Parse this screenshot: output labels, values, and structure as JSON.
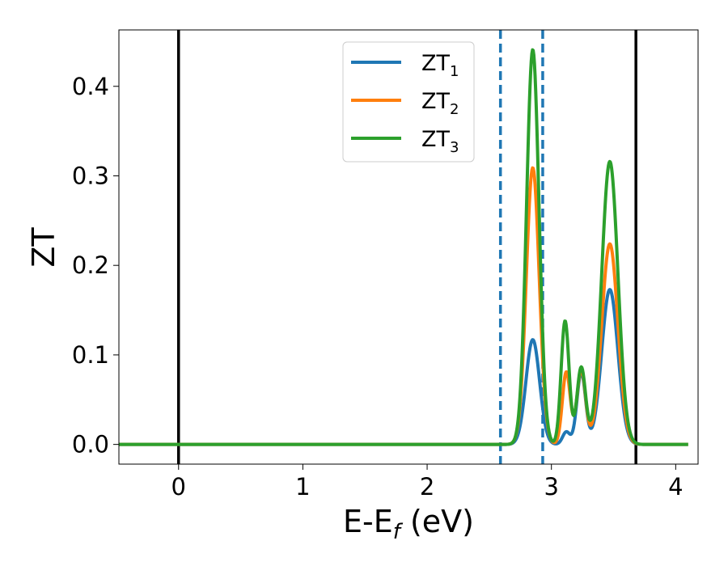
{
  "chart_data": {
    "type": "line",
    "xlabel_main": "E-E",
    "xlabel_sub": "f",
    "xlabel_unit": " (eV)",
    "ylabel": "ZT",
    "xlim": [
      -0.48,
      4.18
    ],
    "ylim": [
      -0.022,
      0.463
    ],
    "xticks": [
      0,
      1,
      2,
      3,
      4
    ],
    "xtick_labels": [
      "0",
      "1",
      "2",
      "3",
      "4"
    ],
    "yticks": [
      0.0,
      0.1,
      0.2,
      0.3,
      0.4
    ],
    "ytick_labels": [
      "0.0",
      "0.1",
      "0.2",
      "0.3",
      "0.4"
    ],
    "grid": false,
    "legend_position": "top-center",
    "x_range": [
      -0.48,
      4.1
    ],
    "series": [
      {
        "name": "ZT",
        "subscript": "1",
        "color": "#1f77b4",
        "peaks": [
          {
            "x": 2.85,
            "y": 0.117,
            "w": 0.055
          },
          {
            "x": 3.12,
            "y": 0.014,
            "w": 0.03
          },
          {
            "x": 3.24,
            "y": 0.08,
            "w": 0.035
          },
          {
            "x": 3.47,
            "y": 0.173,
            "w": 0.065
          }
        ]
      },
      {
        "name": "ZT",
        "subscript": "2",
        "color": "#ff7f0e",
        "peaks": [
          {
            "x": 2.85,
            "y": 0.309,
            "w": 0.052
          },
          {
            "x": 3.12,
            "y": 0.081,
            "w": 0.032
          },
          {
            "x": 3.24,
            "y": 0.083,
            "w": 0.035
          },
          {
            "x": 3.47,
            "y": 0.224,
            "w": 0.065
          }
        ]
      },
      {
        "name": "ZT",
        "subscript": "3",
        "color": "#2ca02c",
        "peaks": [
          {
            "x": 2.85,
            "y": 0.441,
            "w": 0.05
          },
          {
            "x": 3.11,
            "y": 0.138,
            "w": 0.032
          },
          {
            "x": 3.24,
            "y": 0.086,
            "w": 0.035
          },
          {
            "x": 3.47,
            "y": 0.316,
            "w": 0.065
          }
        ]
      }
    ],
    "vlines": [
      {
        "x": 0.0,
        "style": "solid",
        "color": "#000000"
      },
      {
        "x": 3.68,
        "style": "solid",
        "color": "#000000"
      },
      {
        "x": 2.59,
        "style": "dashed",
        "color": "#1f77b4"
      },
      {
        "x": 2.93,
        "style": "dashed",
        "color": "#1f77b4"
      }
    ]
  }
}
